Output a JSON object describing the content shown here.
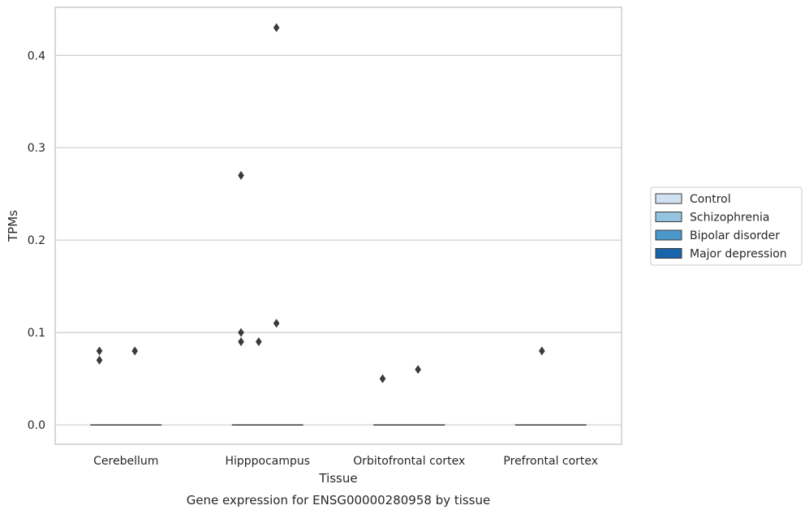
{
  "caption": "Gene expression for ENSG00000280958 by tissue",
  "colors": {
    "Control": "#d0e1f2",
    "Schizophrenia": "#94c4df",
    "Bipolar disorder": "#4a98c9",
    "Major depression": "#1764ab",
    "outlier": "#3a3a3a",
    "grid": "#cccccc",
    "axes_frame": "#cccccc"
  },
  "chart_data": {
    "type": "box",
    "xlabel": "Tissue",
    "ylabel": "TPMs",
    "ylim": [
      -0.021,
      0.452
    ],
    "yticks": [
      0.0,
      0.1,
      0.2,
      0.3,
      0.4
    ],
    "ytick_labels": [
      "0.0",
      "0.1",
      "0.2",
      "0.3",
      "0.4"
    ],
    "grid": "horizontal",
    "legend_position": "right",
    "categories": [
      "Cerebellum",
      "Hipppocampus",
      "Orbitofrontal cortex",
      "Prefrontal cortex"
    ],
    "series": [
      {
        "name": "Control",
        "median": [
          0.0,
          0.0,
          0.0,
          0.0
        ],
        "q1": [
          0.0,
          0.0,
          0.0,
          0.0
        ],
        "q3": [
          0.0,
          0.0,
          0.0,
          0.0
        ],
        "outliers": [
          [
            0.08,
            0.07
          ],
          [
            0.27,
            0.1,
            0.09
          ],
          [
            0.05
          ],
          []
        ]
      },
      {
        "name": "Schizophrenia",
        "median": [
          0.0,
          0.0,
          0.0,
          0.0
        ],
        "q1": [
          0.0,
          0.0,
          0.0,
          0.0
        ],
        "q3": [
          0.0,
          0.0,
          0.0,
          0.0
        ],
        "outliers": [
          [],
          [
            0.09
          ],
          [],
          [
            0.08
          ]
        ]
      },
      {
        "name": "Bipolar disorder",
        "median": [
          0.0,
          0.0,
          0.0,
          0.0
        ],
        "q1": [
          0.0,
          0.0,
          0.0,
          0.0
        ],
        "q3": [
          0.0,
          0.0,
          0.0,
          0.0
        ],
        "outliers": [
          [
            0.08
          ],
          [
            0.43,
            0.11
          ],
          [
            0.06
          ],
          []
        ]
      },
      {
        "name": "Major depression",
        "median": [
          0.0,
          0.0,
          0.0,
          0.0
        ],
        "q1": [
          0.0,
          0.0,
          0.0,
          0.0
        ],
        "q3": [
          0.0,
          0.0,
          0.0,
          0.0
        ],
        "outliers": [
          [],
          [],
          [],
          []
        ]
      }
    ]
  }
}
